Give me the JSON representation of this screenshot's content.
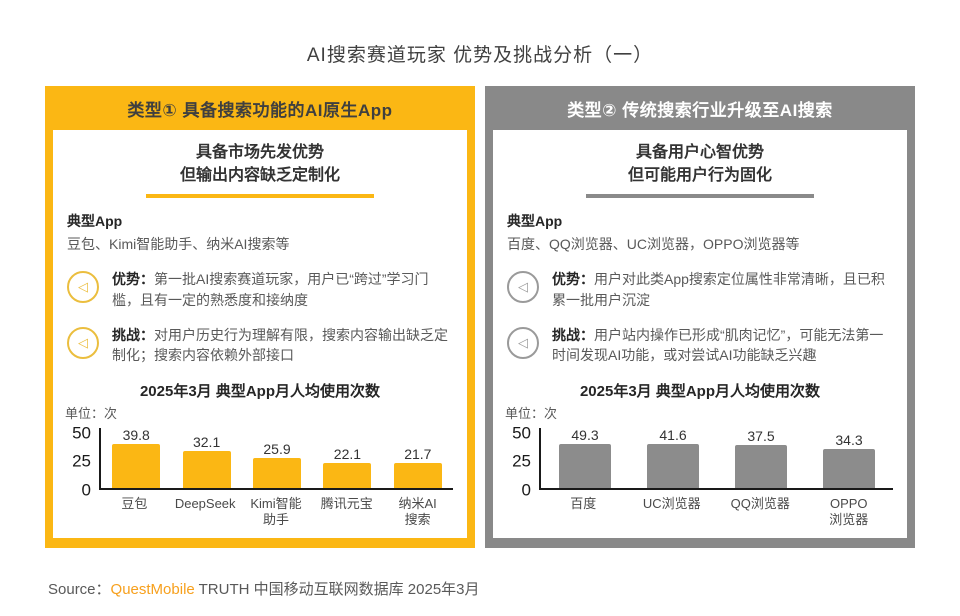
{
  "page": {
    "title": "AI搜索赛道玩家 优势及挑战分析（一）",
    "source": {
      "label": "Source：",
      "brand": "QuestMobile",
      "rest": " TRUTH 中国移动互联网数据库 2025年3月"
    }
  },
  "colors": {
    "yellow_accent": "#FBB714",
    "gray_accent": "#898989",
    "brand_orange": "#F7A01D"
  },
  "panels": [
    {
      "header": "类型① 具备搜索功能的AI原生App",
      "subtitle_line1": "具备市场先发优势",
      "subtitle_line2": "但输出内容缺乏定制化",
      "typical_label": "典型App",
      "typical_apps": "豆包、Kimi智能助手、纳米AI搜索等",
      "advantage_label": "优势：",
      "advantage_text": "第一批AI搜索赛道玩家，用户已“跨过”学习门槛，且有一定的熟悉度和接纳度",
      "challenge_label": "挑战：",
      "challenge_text": "对用户历史行为理解有限，搜索内容输出缺乏定制化；搜索内容依赖外部接口"
    },
    {
      "header": "类型② 传统搜索行业升级至AI搜索",
      "subtitle_line1": "具备用户心智优势",
      "subtitle_line2": "但可能用户行为固化",
      "typical_label": "典型App",
      "typical_apps": "百度、QQ浏览器、UC浏览器，OPPO浏览器等",
      "advantage_label": "优势：",
      "advantage_text": "用户对此类App搜索定位属性非常清晰，且已积累一批用户沉淀",
      "challenge_label": "挑战：",
      "challenge_text": "用户站内操作已形成“肌肉记忆”，可能无法第一时间发现AI功能，或对尝试AI功能缺乏兴趣"
    }
  ],
  "chart_data": [
    {
      "type": "bar",
      "title": "2025年3月 典型App月人均使用次数",
      "unit": "单位：次",
      "categories": [
        "豆包",
        "DeepSeek",
        "Kimi智能\n助手",
        "腾讯元宝",
        "纳米AI\n搜索"
      ],
      "values": [
        39.8,
        32.1,
        25.9,
        22.1,
        21.7
      ],
      "yticks": [
        0,
        25,
        50
      ],
      "ylim": [
        0,
        55
      ],
      "grid": false,
      "legend": "none",
      "bar_color": "#FBB714"
    },
    {
      "type": "bar",
      "title": "2025年3月 典型App月人均使用次数",
      "unit": "单位：次",
      "categories": [
        "百度",
        "UC浏览器",
        "QQ浏览器",
        "OPPO\n浏览器"
      ],
      "values": [
        49.3,
        41.6,
        37.5,
        34.3
      ],
      "yticks": [
        0,
        25,
        50
      ],
      "ylim": [
        0,
        55
      ],
      "grid": false,
      "legend": "none",
      "bar_color": "#8C8C8C"
    }
  ]
}
